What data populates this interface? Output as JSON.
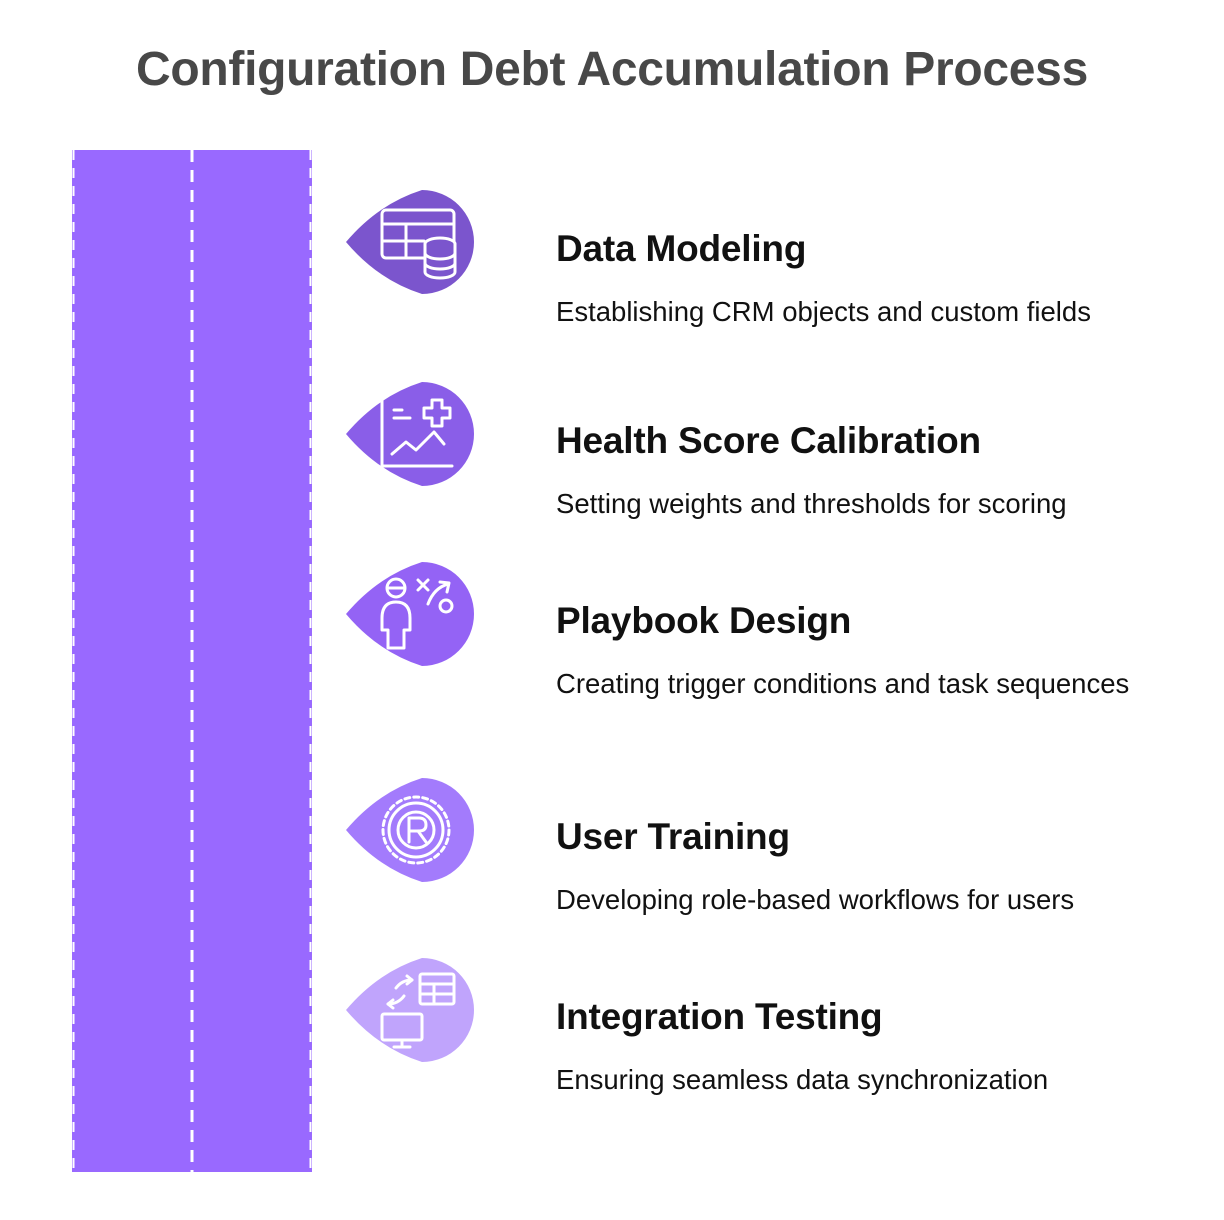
{
  "title": "Configuration Debt Accumulation Process",
  "colors": {
    "road": "#9969FF",
    "lane_divider": "#FFFFFF",
    "title_text": "#484848",
    "body_text": "#111111"
  },
  "steps": [
    {
      "title": "Data Modeling",
      "description": "Establishing CRM objects and custom fields",
      "icon": "table-database-icon",
      "color": "#7B55CD"
    },
    {
      "title": "Health Score Calibration",
      "description": "Setting weights and thresholds for scoring",
      "icon": "chart-plus-icon",
      "color": "#8A5EE8"
    },
    {
      "title": "Playbook Design",
      "description": "Creating trigger conditions and task sequences",
      "icon": "person-strategy-icon",
      "color": "#9463F5"
    },
    {
      "title": "User Training",
      "description": "Developing role-based workflows for users",
      "icon": "gear-r-icon",
      "color": "#A37BFC"
    },
    {
      "title": "Integration Testing",
      "description": "Ensuring seamless data synchronization",
      "icon": "sync-monitor-table-icon",
      "color": "#C0A4FC"
    }
  ]
}
